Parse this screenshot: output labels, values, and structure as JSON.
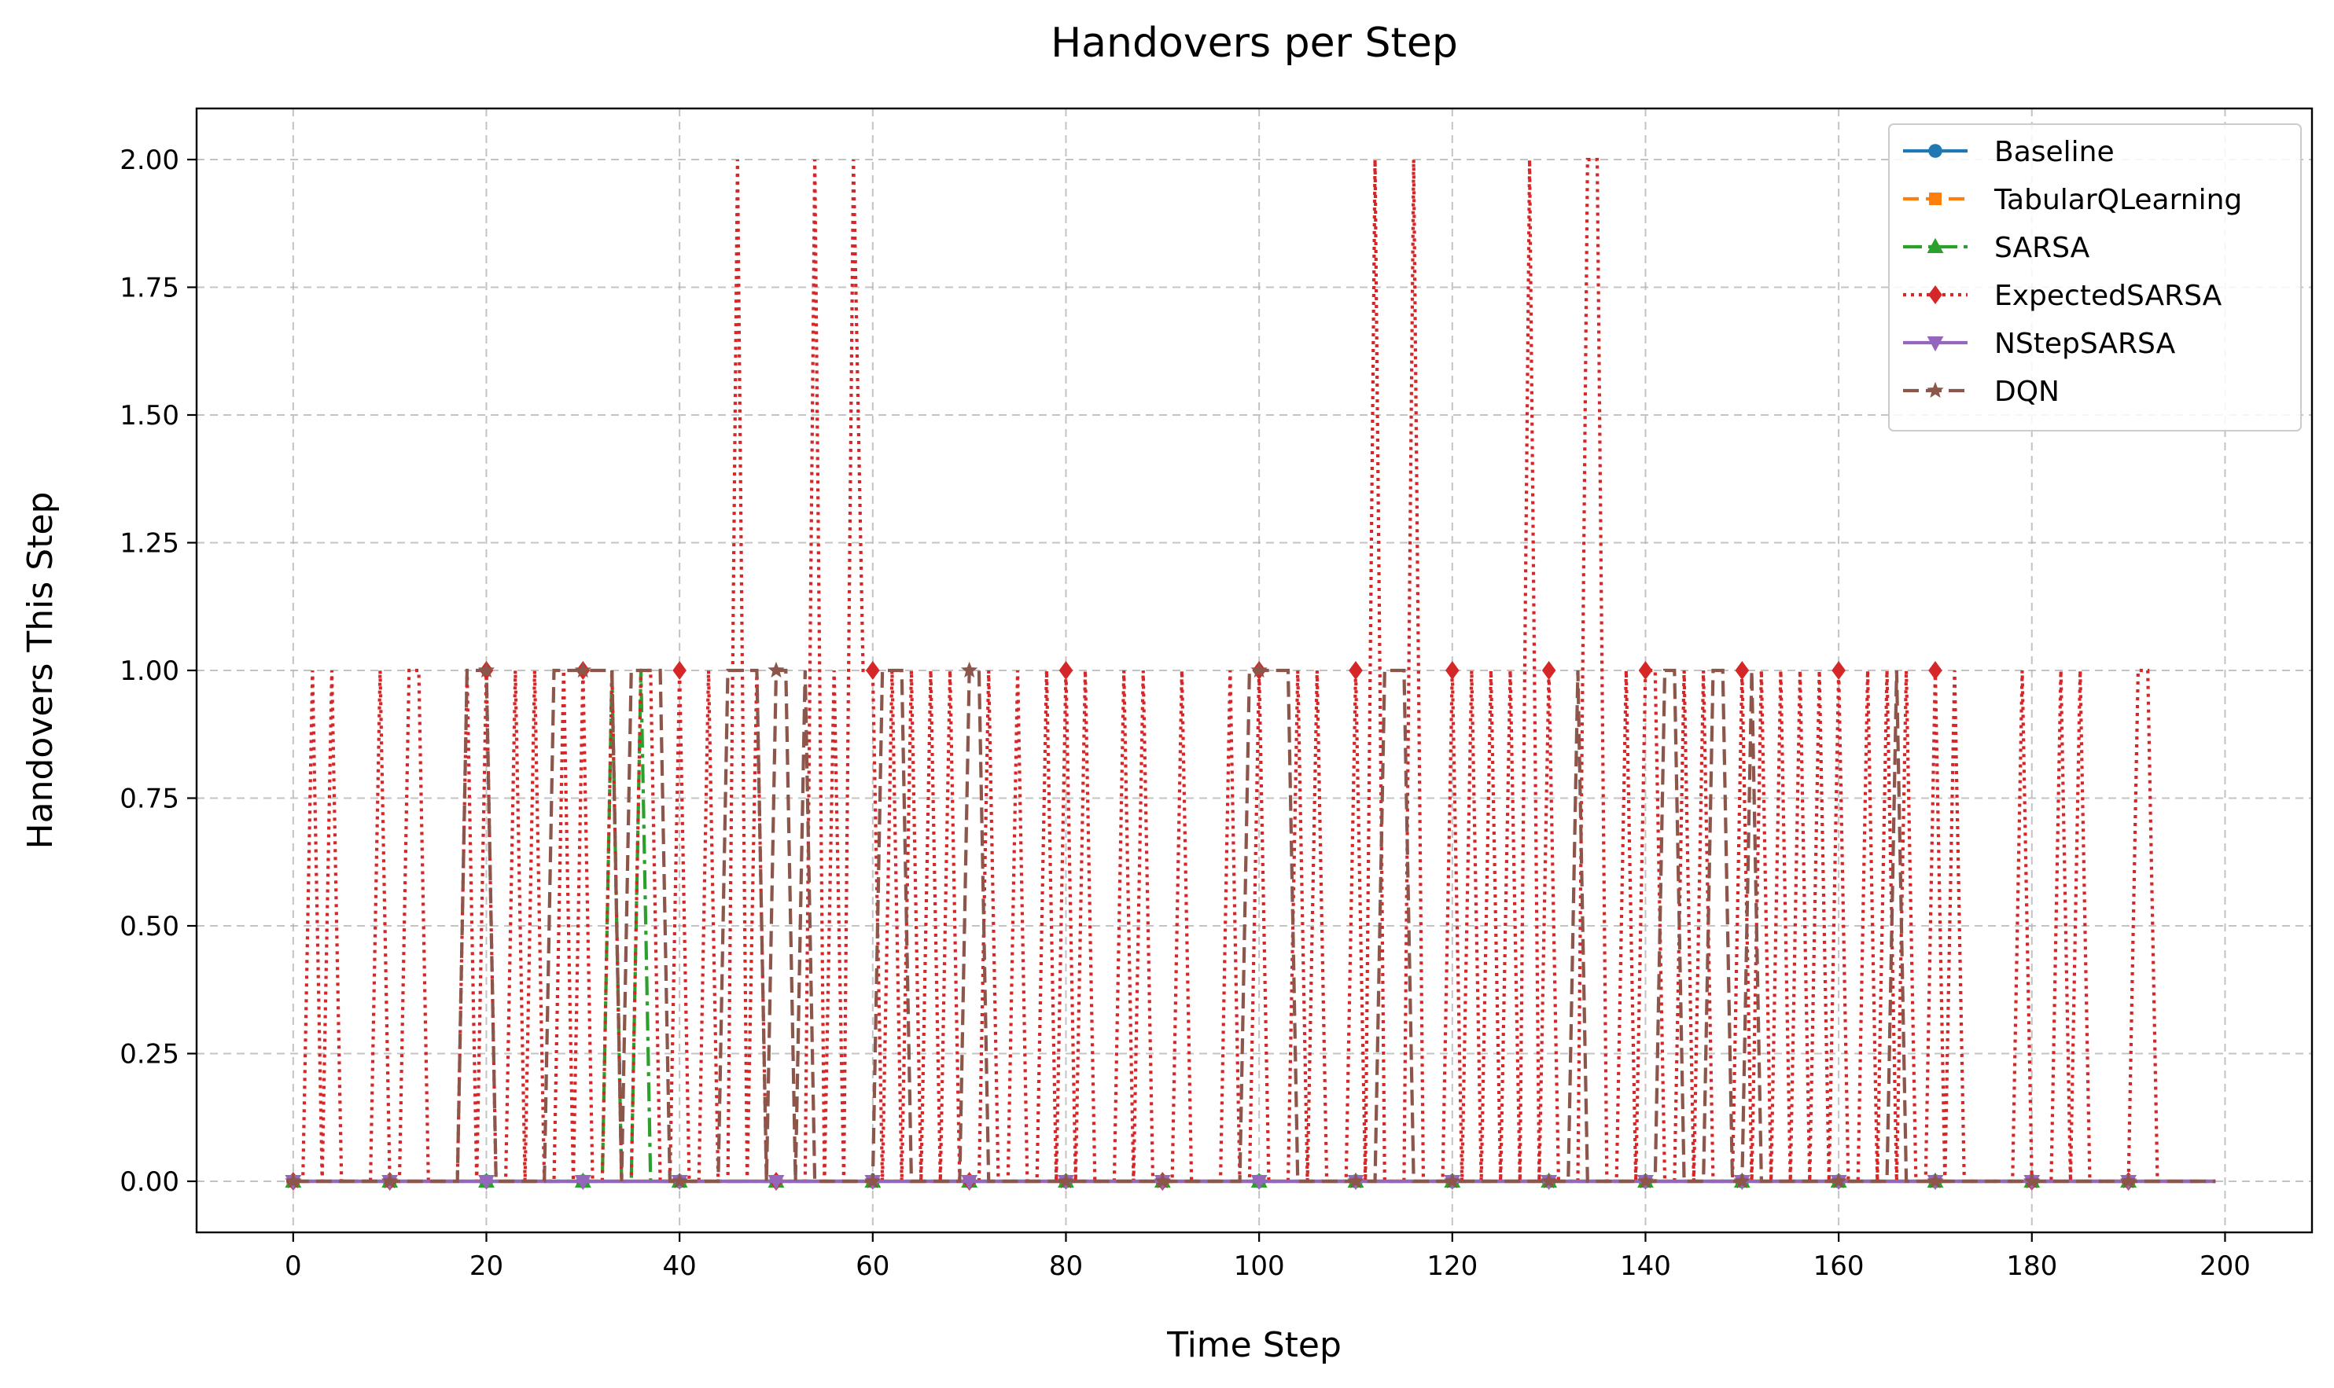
{
  "chart_data": {
    "type": "line",
    "title": "Handovers per Step",
    "xlabel": "Time Step",
    "ylabel": "Handovers This Step",
    "xlim": [
      -10,
      209
    ],
    "ylim": [
      -0.1,
      2.1
    ],
    "xticks": [
      0,
      20,
      40,
      60,
      80,
      100,
      120,
      140,
      160,
      180,
      200
    ],
    "yticks": [
      0,
      0.25,
      0.5,
      0.75,
      1.0,
      1.25,
      1.5,
      1.75,
      2.0
    ],
    "xtick_labels": [
      "0",
      "20",
      "40",
      "60",
      "80",
      "100",
      "120",
      "140",
      "160",
      "180",
      "200"
    ],
    "ytick_labels": [
      "0.00",
      "0.25",
      "0.50",
      "0.75",
      "1.00",
      "1.25",
      "1.50",
      "1.75",
      "2.00"
    ],
    "grid": true,
    "legend_position": "top-right",
    "n_steps": 200,
    "series": [
      {
        "name": "Baseline",
        "color": "#1f77b4",
        "linestyle": "solid",
        "marker": "circle",
        "spikes": []
      },
      {
        "name": "TabularQLearning",
        "color": "#ff7f0e",
        "linestyle": "dashed",
        "marker": "square",
        "spikes": []
      },
      {
        "name": "SARSA",
        "color": "#2ca02c",
        "linestyle": "dashdot",
        "marker": "triangle-up",
        "spikes": [
          [
            33,
            1
          ],
          [
            36,
            1
          ]
        ]
      },
      {
        "name": "ExpectedSARSA",
        "color": "#d62728",
        "linestyle": "dotted",
        "marker": "diamond",
        "spikes": [
          [
            2,
            1
          ],
          [
            4,
            1
          ],
          [
            9,
            1
          ],
          [
            12,
            1
          ],
          [
            13,
            1
          ],
          [
            18,
            1
          ],
          [
            20,
            1
          ],
          [
            23,
            1
          ],
          [
            25,
            1
          ],
          [
            28,
            1
          ],
          [
            30,
            1
          ],
          [
            33,
            1
          ],
          [
            36,
            1
          ],
          [
            37,
            1
          ],
          [
            40,
            1
          ],
          [
            43,
            1
          ],
          [
            46,
            2
          ],
          [
            48,
            1
          ],
          [
            54,
            2
          ],
          [
            56,
            1
          ],
          [
            58,
            2
          ],
          [
            59,
            1
          ],
          [
            60,
            1
          ],
          [
            62,
            1
          ],
          [
            64,
            1
          ],
          [
            66,
            1
          ],
          [
            68,
            1
          ],
          [
            72,
            1
          ],
          [
            75,
            1
          ],
          [
            78,
            1
          ],
          [
            80,
            1
          ],
          [
            82,
            1
          ],
          [
            86,
            1
          ],
          [
            88,
            1
          ],
          [
            92,
            1
          ],
          [
            97,
            1
          ],
          [
            100,
            1
          ],
          [
            104,
            1
          ],
          [
            106,
            1
          ],
          [
            110,
            1
          ],
          [
            112,
            2
          ],
          [
            116,
            2
          ],
          [
            120,
            1
          ],
          [
            122,
            1
          ],
          [
            124,
            1
          ],
          [
            126,
            1
          ],
          [
            128,
            2
          ],
          [
            130,
            1
          ],
          [
            134,
            2
          ],
          [
            135,
            2
          ],
          [
            138,
            1
          ],
          [
            140,
            1
          ],
          [
            141,
            1
          ],
          [
            144,
            1
          ],
          [
            146,
            1
          ],
          [
            150,
            1
          ],
          [
            152,
            1
          ],
          [
            154,
            1
          ],
          [
            156,
            1
          ],
          [
            158,
            1
          ],
          [
            160,
            1
          ],
          [
            163,
            1
          ],
          [
            165,
            1
          ],
          [
            167,
            1
          ],
          [
            170,
            1
          ],
          [
            172,
            1
          ],
          [
            179,
            1
          ],
          [
            183,
            1
          ],
          [
            185,
            1
          ],
          [
            191,
            1
          ],
          [
            192,
            1
          ]
        ]
      },
      {
        "name": "NStepSARSA",
        "color": "#9467bd",
        "linestyle": "solid",
        "marker": "triangle-down",
        "spikes": []
      },
      {
        "name": "DQN",
        "color": "#8c564b",
        "linestyle": "dashed",
        "marker": "star",
        "spikes": [
          [
            18,
            1
          ],
          [
            19,
            1
          ],
          [
            20,
            1
          ],
          [
            27,
            1
          ],
          [
            28,
            1
          ],
          [
            29,
            1
          ],
          [
            30,
            1
          ],
          [
            31,
            1
          ],
          [
            32,
            1
          ],
          [
            33,
            1
          ],
          [
            35,
            1
          ],
          [
            36,
            1
          ],
          [
            37,
            1
          ],
          [
            38,
            1
          ],
          [
            45,
            1
          ],
          [
            46,
            1
          ],
          [
            47,
            1
          ],
          [
            48,
            1
          ],
          [
            50,
            1
          ],
          [
            51,
            1
          ],
          [
            53,
            1
          ],
          [
            61,
            1
          ],
          [
            62,
            1
          ],
          [
            63,
            1
          ],
          [
            70,
            1
          ],
          [
            71,
            1
          ],
          [
            99,
            1
          ],
          [
            100,
            1
          ],
          [
            101,
            1
          ],
          [
            102,
            1
          ],
          [
            103,
            1
          ],
          [
            113,
            1
          ],
          [
            114,
            1
          ],
          [
            115,
            1
          ],
          [
            133,
            1
          ],
          [
            142,
            1
          ],
          [
            143,
            1
          ],
          [
            147,
            1
          ],
          [
            148,
            1
          ],
          [
            151,
            1
          ],
          [
            166,
            1
          ]
        ]
      }
    ]
  }
}
